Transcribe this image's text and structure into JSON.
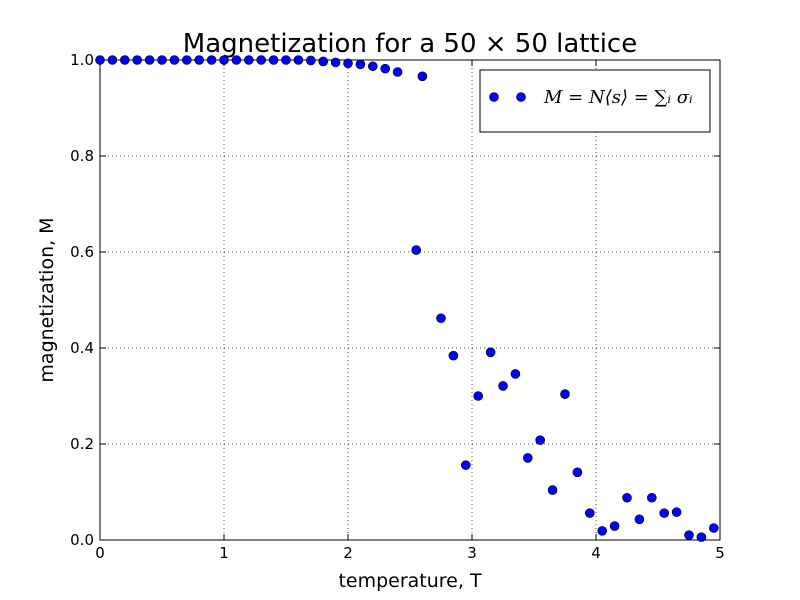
{
  "chart_data": {
    "type": "scatter",
    "title": "Magnetization for a 50 × 50 lattice",
    "xlabel": "temperature, T",
    "ylabel": "magnetization, M",
    "xlim": [
      0,
      5
    ],
    "ylim": [
      0,
      1
    ],
    "x_ticks": [
      "0",
      "1",
      "2",
      "3",
      "4",
      "5"
    ],
    "y_ticks": [
      "0.0",
      "0.2",
      "0.4",
      "0.6",
      "0.8",
      "1.0"
    ],
    "grid": true,
    "legend_position": "top-right",
    "point_color": "#0000ff",
    "series": [
      {
        "name": "M = N⟨s⟩ = ∑ᵢ σᵢ",
        "x": [
          0.0,
          0.1,
          0.2,
          0.3,
          0.4,
          0.5,
          0.6,
          0.7,
          0.8,
          0.9,
          1.0,
          1.1,
          1.2,
          1.3,
          1.4,
          1.5,
          1.6,
          1.7,
          1.8,
          1.9,
          2.0,
          2.1,
          2.2,
          2.3,
          2.4,
          2.6,
          2.55,
          2.75,
          2.85,
          2.95,
          3.05,
          3.15,
          3.25,
          3.35,
          3.45,
          3.55,
          3.65,
          3.75,
          3.85,
          3.95,
          4.05,
          4.15,
          4.25,
          4.35,
          4.45,
          4.55,
          4.65,
          4.75,
          4.85,
          4.95
        ],
        "y": [
          1.0,
          1.0,
          1.0,
          1.0,
          1.0,
          1.0,
          1.0,
          1.0,
          1.0,
          1.0,
          1.0,
          1.0,
          1.0,
          1.0,
          1.0,
          1.0,
          1.0,
          0.999,
          0.997,
          0.995,
          0.993,
          0.991,
          0.987,
          0.982,
          0.975,
          0.966,
          0.604,
          0.462,
          0.384,
          0.156,
          0.3,
          0.391,
          0.321,
          0.346,
          0.171,
          0.208,
          0.104,
          0.304,
          0.141,
          0.056,
          0.019,
          0.029,
          0.088,
          0.043,
          0.088,
          0.056,
          0.058,
          0.01,
          0.006,
          0.025
        ]
      }
    ]
  }
}
